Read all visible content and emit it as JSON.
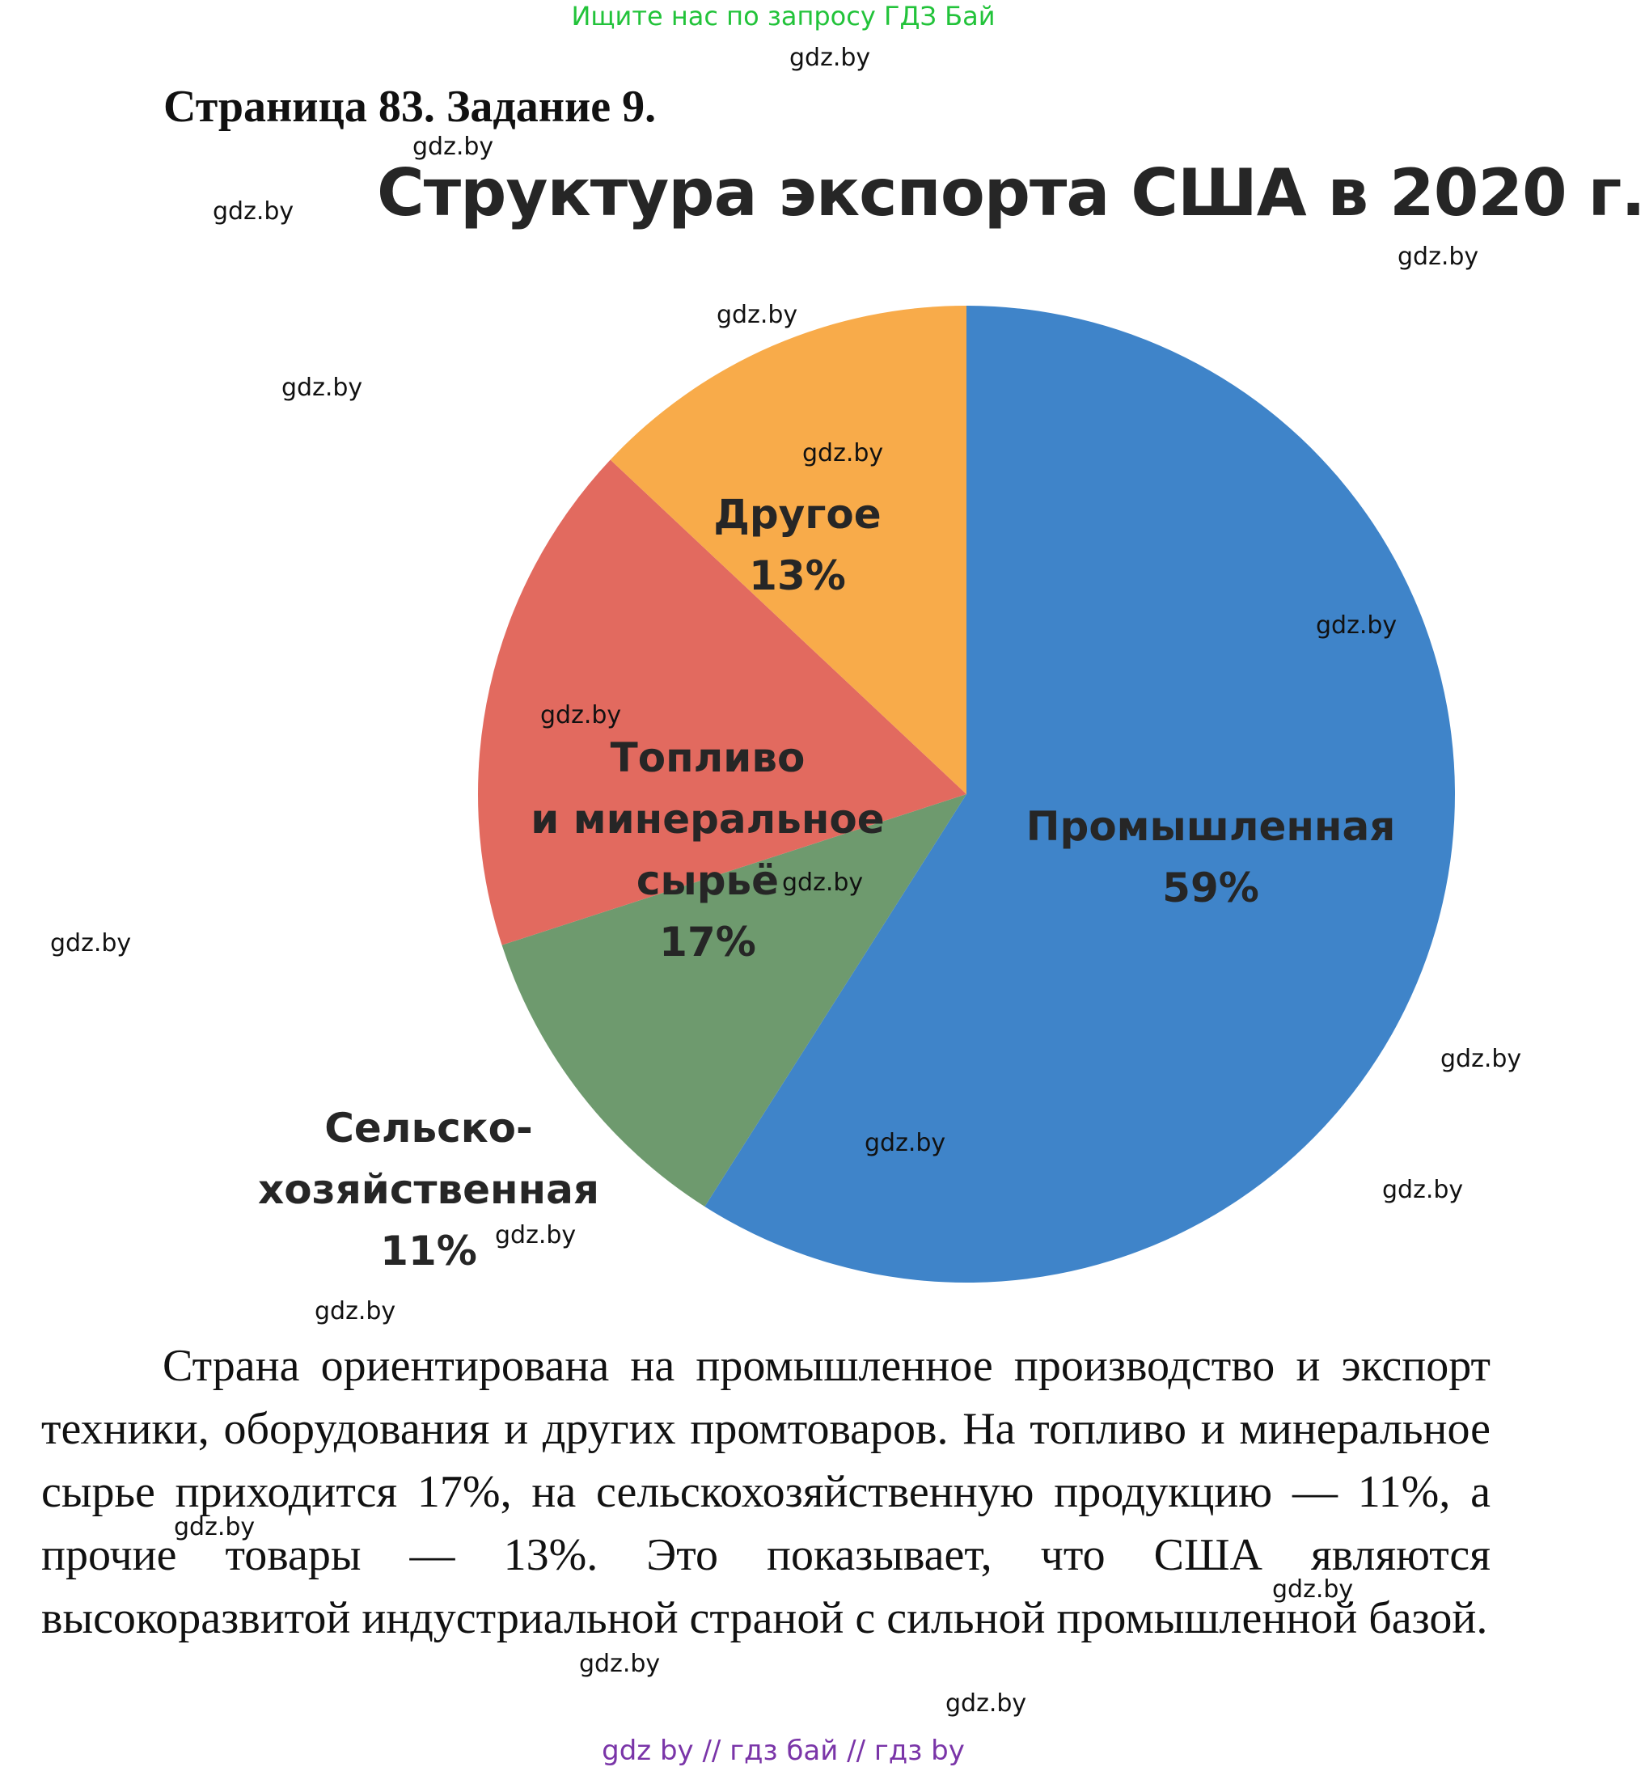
{
  "header": {
    "banner": "Ищите нас по запросу ГДЗ Бай",
    "task_title": "Страница 83. Задание 9."
  },
  "chart_data": {
    "type": "pie",
    "title": "Структура экспорта США в 2020 г.",
    "slices": [
      {
        "name": "Промышленная",
        "value": 59,
        "value_label": "59%",
        "color": "#3f84c9"
      },
      {
        "name": "Сельскохозяйственная",
        "value": 11,
        "value_label": "11%",
        "color": "#6e9a6e"
      },
      {
        "name": "Топливо и минеральное сырьё",
        "value": 17,
        "value_label": "17%",
        "color": "#e26a5f"
      },
      {
        "name": "Другое",
        "value": 13,
        "value_label": "13%",
        "color": "#f8ab4a"
      }
    ],
    "labels": {
      "industrial": [
        "Промышленная",
        "59%"
      ],
      "agricultural": [
        "Сельско-",
        "хозяйственная",
        "11%"
      ],
      "fuel": [
        "Топливо",
        "и минеральное",
        "сырьё",
        "17%"
      ],
      "other": [
        "Другое",
        "13%"
      ]
    }
  },
  "body": {
    "paragraph": "Страна ориентирована на промышленное производство и экспорт техники, оборудования и других промтоваров. На топливо и минеральное сырье приходится 17%, на сельскохозяйственную продукцию — 11%, а прочие товары — 13%. Это показывает, что США являются высокоразвитой индустриальной страной с сильной промышленной базой."
  },
  "watermark": "gdz.by",
  "footer": "gdz by  //  гдз бай  //  гдз by"
}
